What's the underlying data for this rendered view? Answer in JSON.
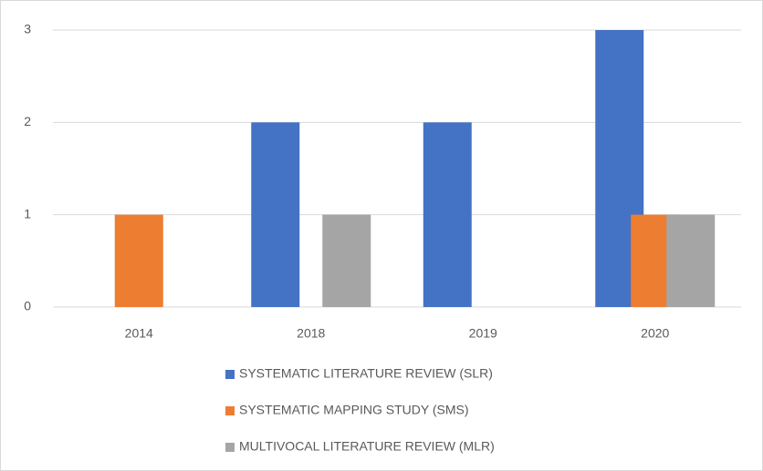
{
  "chart_data": {
    "type": "bar",
    "categories": [
      "2014",
      "2018",
      "2019",
      "2020"
    ],
    "series": [
      {
        "name": "SYSTEMATIC LITERATURE REVIEW (SLR)",
        "color": "#4472c4",
        "values": [
          0,
          2,
          2,
          3
        ]
      },
      {
        "name": "SYSTEMATIC MAPPING STUDY (SMS)",
        "color": "#ed7d31",
        "values": [
          1,
          0,
          0,
          1
        ]
      },
      {
        "name": "MULTIVOCAL LITERATURE REVIEW (MLR)",
        "color": "#a5a5a5",
        "values": [
          0,
          1,
          0,
          1
        ]
      }
    ],
    "ylim": [
      0,
      3
    ],
    "yticks": [
      0,
      1,
      2,
      3
    ],
    "grid": true,
    "legend": "bottom"
  }
}
